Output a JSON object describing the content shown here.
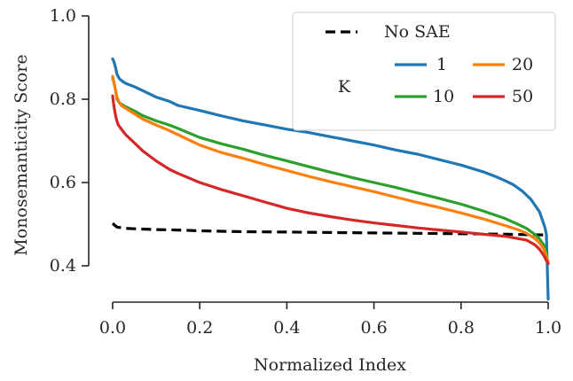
{
  "chart_data": {
    "type": "line",
    "title": "",
    "xlabel": "Normalized Index",
    "ylabel": "Monosemanticity Score",
    "xlim": [
      -0.02,
      1.0
    ],
    "ylim": [
      0.33,
      1.0
    ],
    "xticks": [
      0.0,
      0.2,
      0.4,
      0.6,
      0.8,
      1.0
    ],
    "xtick_labels": [
      "0.0",
      "0.2",
      "0.4",
      "0.6",
      "0.8",
      "1.0"
    ],
    "yticks": [
      0.4,
      0.6,
      0.8,
      1.0
    ],
    "ytick_labels": [
      "0.4",
      "0.6",
      "0.8",
      "1.0"
    ],
    "grid": false,
    "legend_position": "top-right",
    "legend_group_title": "K",
    "colors": {
      "axis": "#262626",
      "k1": "#1f77b4",
      "k10": "#2ca02c",
      "k20": "#ff7f0e",
      "k50": "#d62728",
      "no_sae": "#000000"
    },
    "series": [
      {
        "name": "No SAE",
        "color_key": "no_sae",
        "dashed": true,
        "x": [
          0.0,
          0.002,
          0.005,
          0.01,
          0.03,
          0.05,
          0.1,
          0.15,
          0.2,
          0.3,
          0.4,
          0.5,
          0.6,
          0.7,
          0.8,
          0.9,
          0.95,
          1.0
        ],
        "y": [
          0.502,
          0.5,
          0.497,
          0.493,
          0.49,
          0.489,
          0.487,
          0.486,
          0.484,
          0.482,
          0.481,
          0.48,
          0.479,
          0.478,
          0.477,
          0.476,
          0.475,
          0.474
        ]
      },
      {
        "name": "1",
        "color_key": "k1",
        "dashed": false,
        "x": [
          0.0,
          0.003,
          0.007,
          0.01,
          0.015,
          0.02,
          0.03,
          0.05,
          0.07,
          0.1,
          0.13,
          0.15,
          0.2,
          0.25,
          0.3,
          0.35,
          0.4,
          0.45,
          0.5,
          0.55,
          0.6,
          0.65,
          0.7,
          0.75,
          0.8,
          0.85,
          0.88,
          0.9,
          0.92,
          0.94,
          0.96,
          0.97,
          0.98,
          0.985,
          0.99,
          0.993,
          0.996,
          0.998,
          1.0
        ],
        "y": [
          0.897,
          0.89,
          0.875,
          0.86,
          0.85,
          0.845,
          0.838,
          0.83,
          0.82,
          0.805,
          0.795,
          0.785,
          0.773,
          0.76,
          0.748,
          0.738,
          0.728,
          0.72,
          0.71,
          0.7,
          0.69,
          0.678,
          0.668,
          0.655,
          0.642,
          0.626,
          0.614,
          0.605,
          0.595,
          0.58,
          0.56,
          0.545,
          0.53,
          0.515,
          0.5,
          0.49,
          0.475,
          0.4,
          0.32
        ]
      },
      {
        "name": "10",
        "color_key": "k10",
        "dashed": false,
        "x": [
          0.0,
          0.003,
          0.007,
          0.01,
          0.015,
          0.02,
          0.03,
          0.05,
          0.07,
          0.1,
          0.13,
          0.15,
          0.2,
          0.25,
          0.3,
          0.35,
          0.4,
          0.45,
          0.5,
          0.55,
          0.6,
          0.65,
          0.7,
          0.75,
          0.8,
          0.85,
          0.9,
          0.93,
          0.95,
          0.97,
          0.98,
          0.99,
          0.995,
          1.0
        ],
        "y": [
          0.85,
          0.84,
          0.82,
          0.8,
          0.792,
          0.788,
          0.782,
          0.772,
          0.76,
          0.748,
          0.738,
          0.73,
          0.708,
          0.693,
          0.68,
          0.665,
          0.652,
          0.638,
          0.625,
          0.612,
          0.6,
          0.588,
          0.575,
          0.562,
          0.548,
          0.532,
          0.514,
          0.5,
          0.49,
          0.475,
          0.465,
          0.45,
          0.435,
          0.405
        ]
      },
      {
        "name": "20",
        "color_key": "k20",
        "dashed": false,
        "x": [
          0.0,
          0.003,
          0.007,
          0.01,
          0.015,
          0.02,
          0.03,
          0.05,
          0.07,
          0.1,
          0.13,
          0.15,
          0.2,
          0.25,
          0.3,
          0.35,
          0.4,
          0.45,
          0.5,
          0.55,
          0.6,
          0.65,
          0.7,
          0.75,
          0.8,
          0.85,
          0.9,
          0.93,
          0.95,
          0.97,
          0.98,
          0.99,
          0.995,
          1.0
        ],
        "y": [
          0.855,
          0.84,
          0.82,
          0.805,
          0.792,
          0.785,
          0.778,
          0.765,
          0.752,
          0.738,
          0.725,
          0.715,
          0.69,
          0.672,
          0.658,
          0.643,
          0.629,
          0.615,
          0.602,
          0.59,
          0.578,
          0.565,
          0.552,
          0.54,
          0.527,
          0.513,
          0.497,
          0.487,
          0.478,
          0.465,
          0.455,
          0.44,
          0.425,
          0.41
        ]
      },
      {
        "name": "50",
        "color_key": "k50",
        "dashed": false,
        "x": [
          0.0,
          0.002,
          0.005,
          0.008,
          0.012,
          0.02,
          0.03,
          0.05,
          0.07,
          0.1,
          0.13,
          0.15,
          0.2,
          0.25,
          0.3,
          0.35,
          0.4,
          0.45,
          0.5,
          0.55,
          0.6,
          0.65,
          0.7,
          0.75,
          0.8,
          0.85,
          0.9,
          0.95,
          0.97,
          0.98,
          0.99,
          0.995,
          1.0
        ],
        "y": [
          0.808,
          0.79,
          0.77,
          0.755,
          0.74,
          0.728,
          0.715,
          0.695,
          0.675,
          0.652,
          0.632,
          0.622,
          0.6,
          0.583,
          0.568,
          0.553,
          0.538,
          0.527,
          0.518,
          0.51,
          0.503,
          0.497,
          0.491,
          0.486,
          0.481,
          0.476,
          0.471,
          0.462,
          0.45,
          0.44,
          0.425,
          0.415,
          0.405
        ]
      }
    ]
  }
}
